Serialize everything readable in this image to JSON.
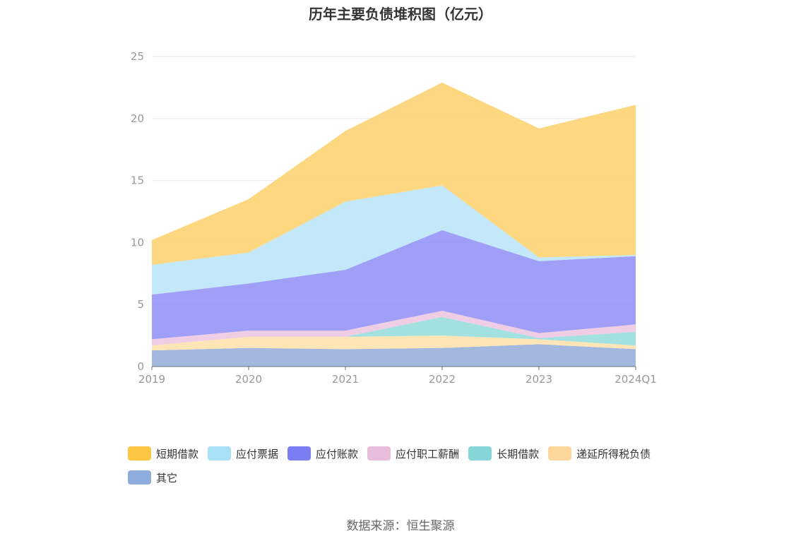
{
  "chart_data": {
    "type": "area",
    "stacked": true,
    "title": "历年主要负债堆积图（亿元）",
    "source": "数据来源：恒生聚源",
    "x": [
      "2019",
      "2020",
      "2021",
      "2022",
      "2023",
      "2024Q1"
    ],
    "ylim": [
      0,
      25
    ],
    "yticks": [
      "0",
      "5",
      "10",
      "15",
      "20",
      "25"
    ],
    "grid": true,
    "legend_position": "bottom",
    "series": [
      {
        "name": "其它",
        "color": "#93acd9",
        "values": [
          1.3,
          1.5,
          1.4,
          1.5,
          1.8,
          1.4
        ]
      },
      {
        "name": "递延所得税负债",
        "color": "#fde0a9",
        "values": [
          0.4,
          0.9,
          1.0,
          1.0,
          0.4,
          0.3
        ]
      },
      {
        "name": "长期借款",
        "color": "#93dcdc",
        "values": [
          0.0,
          0.0,
          0.0,
          1.5,
          0.1,
          1.1
        ]
      },
      {
        "name": "应付职工薪酬",
        "color": "#ebc4e0",
        "values": [
          0.5,
          0.5,
          0.5,
          0.5,
          0.4,
          0.6
        ]
      },
      {
        "name": "应付账款",
        "color": "#8e8ef6",
        "values": [
          3.6,
          3.8,
          4.9,
          6.5,
          5.8,
          5.5
        ]
      },
      {
        "name": "应付票据",
        "color": "#b8e4f9",
        "values": [
          2.4,
          2.5,
          5.5,
          3.6,
          0.3,
          0.1
        ]
      },
      {
        "name": "短期借款",
        "color": "#fdd16a",
        "values": [
          2.0,
          4.3,
          5.7,
          8.3,
          10.4,
          12.1
        ]
      }
    ],
    "legend": [
      {
        "name": "短期借款",
        "color": "#fdc744"
      },
      {
        "name": "应付票据",
        "color": "#a8e0f8"
      },
      {
        "name": "应付账款",
        "color": "#7b7ef0"
      },
      {
        "name": "应付职工薪酬",
        "color": "#e8bcdd"
      },
      {
        "name": "长期借款",
        "color": "#86d6d8"
      },
      {
        "name": "递延所得税负债",
        "color": "#fdd89a"
      },
      {
        "name": "其它",
        "color": "#8eaddb"
      }
    ]
  }
}
